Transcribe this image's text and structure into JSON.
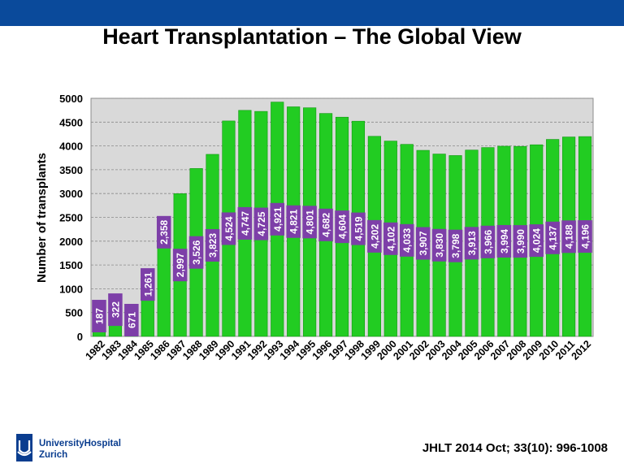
{
  "slide": {
    "title": "Heart Transplantation – The Global View",
    "citation": "JHLT 2014 Oct; 33(10): 996-1008",
    "logo_text_line1": "UniversityHospital",
    "logo_text_line2": "Zurich",
    "logo_icon": "usz-logo-icon",
    "band_color": "#0a4a9b"
  },
  "chart_data": {
    "type": "bar",
    "title": "",
    "xlabel": "",
    "ylabel": "Number of transplants",
    "ylim": [
      0,
      5000
    ],
    "yticks": [
      "0",
      "500",
      "1000",
      "1500",
      "2000",
      "2500",
      "3000",
      "3500",
      "4000",
      "4500",
      "5000"
    ],
    "grid": true,
    "bar_color": "#22cc22",
    "label_color": "#7d3fa8",
    "categories": [
      "1982",
      "1983",
      "1984",
      "1985",
      "1986",
      "1987",
      "1988",
      "1989",
      "1990",
      "1991",
      "1992",
      "1993",
      "1994",
      "1995",
      "1996",
      "1997",
      "1998",
      "1999",
      "2000",
      "2001",
      "2002",
      "2003",
      "2004",
      "2005",
      "2006",
      "2007",
      "2008",
      "2009",
      "2010",
      "2011",
      "2012"
    ],
    "values": [
      187,
      322,
      671,
      1261,
      2358,
      2997,
      3526,
      3823,
      4524,
      4747,
      4725,
      4921,
      4821,
      4801,
      4682,
      4604,
      4519,
      4202,
      4102,
      4033,
      3907,
      3830,
      3798,
      3913,
      3966,
      3994,
      3990,
      4024,
      4137,
      4188,
      4196
    ],
    "value_labels": [
      "187",
      "322",
      "671",
      "1,261",
      "2,358",
      "2,997",
      "3,526",
      "3,823",
      "4,524",
      "4,747",
      "4,725",
      "4,921",
      "4,821",
      "4,801",
      "4,682",
      "4,604",
      "4,519",
      "4,202",
      "4,102",
      "4,033",
      "3,907",
      "3,830",
      "3,798",
      "3,913",
      "3,966",
      "3,994",
      "3,990",
      "4,024",
      "4,137",
      "4,188",
      "4,196"
    ]
  }
}
